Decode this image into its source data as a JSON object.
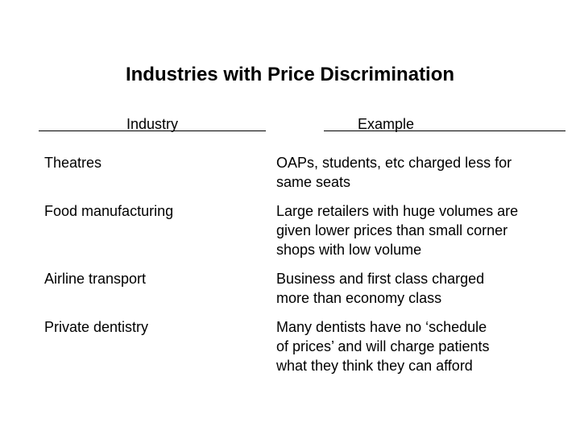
{
  "slide": {
    "title": "Industries with Price Discrimination"
  },
  "table": {
    "headers": {
      "industry": "Industry",
      "example": "Example"
    },
    "rows": [
      {
        "industry": "Theatres",
        "example_lines": [
          "OAPs, students, etc charged less for",
          "same seats"
        ]
      },
      {
        "industry": "Food manufacturing",
        "example_lines": [
          "Large retailers with huge volumes are",
          "given lower prices than small corner",
          "shops with low volume"
        ]
      },
      {
        "industry": "Airline transport",
        "example_lines": [
          "Business and first class charged",
          "more than economy class"
        ]
      },
      {
        "industry": "Private dentistry",
        "example_lines": [
          "Many dentists have no ‘schedule",
          "of prices’ and will charge patients",
          "what they think they can afford"
        ]
      }
    ]
  }
}
